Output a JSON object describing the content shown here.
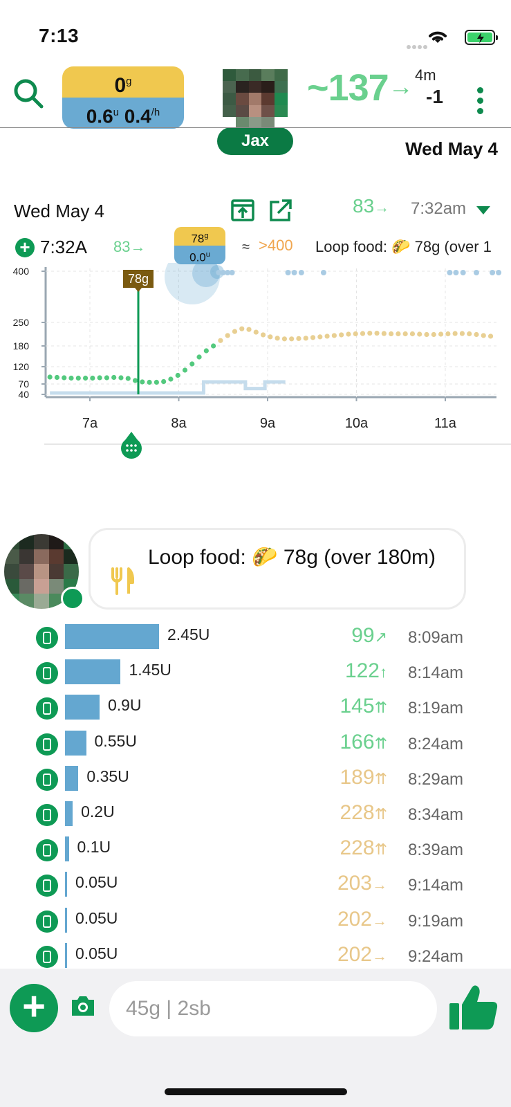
{
  "status_bar": {
    "time": "7:13"
  },
  "header": {
    "carbs_value": "0",
    "carbs_unit": "g",
    "insulin_iob": "0.6",
    "insulin_iob_unit": "u",
    "basal_rate": "0.4",
    "basal_unit": "/h",
    "user_name": "Jax",
    "bg_value": "~137",
    "bg_arrow": "→",
    "bg_age": "4m",
    "bg_delta": "-1",
    "date_label": "Wed May 4"
  },
  "chart_header": {
    "date": "Wed May 4",
    "current_bg": "83",
    "current_arrow": "→",
    "current_time": "7:32am"
  },
  "selected_row": {
    "time": "7:32A",
    "bg": "83→",
    "carbs": "78",
    "carbs_unit": "g",
    "insulin": "0.0",
    "insulin_unit": "u",
    "approx": "≈",
    "predicted": ">400",
    "note": "Loop food: 🌮 78g (over 1"
  },
  "chart_data": {
    "type": "scatter",
    "y_ticks": [
      40,
      70,
      120,
      180,
      250,
      400
    ],
    "x_ticks": [
      "7a",
      "8a",
      "9a",
      "10a",
      "11a"
    ],
    "carb_marker_label": "78g",
    "glucose_x_hours": [
      6.55,
      6.63,
      6.71,
      6.79,
      6.87,
      6.95,
      7.03,
      7.11,
      7.19,
      7.27,
      7.35,
      7.43,
      7.51,
      7.59,
      7.67,
      7.75,
      7.83,
      7.91,
      7.99,
      8.07,
      8.15,
      8.23,
      8.31,
      8.39,
      8.47,
      8.55,
      8.63,
      8.71,
      8.79,
      8.87,
      8.95,
      9.03,
      9.11,
      9.19,
      9.27,
      9.35,
      9.43,
      9.51,
      9.59,
      9.67,
      9.75,
      9.83,
      9.91,
      9.99,
      10.07,
      10.15,
      10.23,
      10.31,
      10.39,
      10.47,
      10.55,
      10.63,
      10.71,
      10.79,
      10.87,
      10.95,
      11.03,
      11.11,
      11.19,
      11.27,
      11.35,
      11.43,
      11.51
    ],
    "glucose_y": [
      90,
      89,
      88,
      87,
      87,
      87,
      87,
      88,
      88,
      89,
      88,
      86,
      80,
      76,
      75,
      75,
      77,
      84,
      95,
      110,
      128,
      148,
      166,
      180,
      196,
      211,
      223,
      231,
      229,
      221,
      213,
      207,
      203,
      201,
      201,
      202,
      203,
      205,
      207,
      209,
      211,
      213,
      215,
      216,
      217,
      218,
      218,
      217,
      216,
      216,
      216,
      216,
      215,
      214,
      214,
      215,
      216,
      217,
      217,
      216,
      214,
      211,
      209
    ],
    "high_markers_x_hours": [
      8.45,
      8.5,
      8.55,
      8.6,
      9.23,
      9.3,
      9.38,
      9.63,
      11.05,
      11.12,
      11.2,
      11.35,
      11.53,
      11.6
    ],
    "basal_x_hours": [
      6.55,
      8.28,
      8.28,
      8.75,
      8.75,
      8.97,
      8.97,
      9.07,
      9.07,
      9.2
    ],
    "basal_level": [
      0,
      0,
      1,
      1,
      0.4,
      0.4,
      1,
      1,
      1,
      1
    ]
  },
  "feed": {
    "food_note": "Loop food: 🌮 78g (over 180m)",
    "boluses": [
      {
        "amount": "2.45U",
        "units": 2.45,
        "bg": "99",
        "arrow": "↗",
        "color": "#6ad08e",
        "time": "8:09am"
      },
      {
        "amount": "1.45U",
        "units": 1.45,
        "bg": "122",
        "arrow": "↑",
        "color": "#6ad08e",
        "time": "8:14am"
      },
      {
        "amount": "0.9U",
        "units": 0.9,
        "bg": "145",
        "arrow": "⇈",
        "color": "#6ad08e",
        "time": "8:19am"
      },
      {
        "amount": "0.55U",
        "units": 0.55,
        "bg": "166",
        "arrow": "⇈",
        "color": "#6ad08e",
        "time": "8:24am"
      },
      {
        "amount": "0.35U",
        "units": 0.35,
        "bg": "189",
        "arrow": "⇈",
        "color": "#e8c789",
        "time": "8:29am"
      },
      {
        "amount": "0.2U",
        "units": 0.2,
        "bg": "228",
        "arrow": "⇈",
        "color": "#e8c789",
        "time": "8:34am"
      },
      {
        "amount": "0.1U",
        "units": 0.1,
        "bg": "228",
        "arrow": "⇈",
        "color": "#e8c789",
        "time": "8:39am"
      },
      {
        "amount": "0.05U",
        "units": 0.05,
        "bg": "203",
        "arrow": "→",
        "color": "#e8c789",
        "time": "9:14am"
      },
      {
        "amount": "0.05U",
        "units": 0.05,
        "bg": "202",
        "arrow": "→",
        "color": "#e8c789",
        "time": "9:19am"
      },
      {
        "amount": "0.05U",
        "units": 0.05,
        "bg": "202",
        "arrow": "→",
        "color": "#e8c789",
        "time": "9:24am"
      }
    ]
  },
  "composer": {
    "placeholder": "45g | 2sb"
  },
  "colors": {
    "accent": "#0e9a55",
    "bg_in_range": "#6ad08e",
    "bg_high": "#e8c789",
    "insulin": "#64a7d0",
    "carbs": "#f0c84f"
  }
}
